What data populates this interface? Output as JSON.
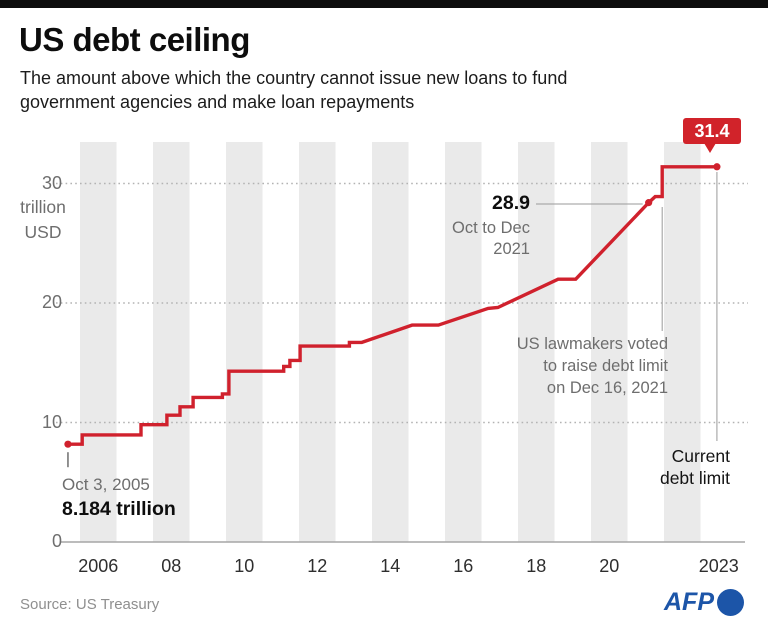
{
  "header": {
    "title": "US debt ceiling",
    "subtitle_lines": [
      "The amount above which the country cannot issue new loans to fund",
      "government agencies and make loan repayments"
    ]
  },
  "footer": {
    "source": "Source: US Treasury",
    "logo_text": "AFP"
  },
  "colors": {
    "accent_red": "#d1232a",
    "line_red": "#d0212d",
    "afp_blue": "#1c55a8",
    "stripe_gray": "#eaeaea",
    "grid_gray": "#b3b3b3",
    "axis_gray": "#a6a6a6",
    "ref_line_gray": "#999999",
    "annotation_gray": "#6e6e6e"
  },
  "chart_data": {
    "type": "line",
    "title": "US debt ceiling",
    "ylabel": "trillion USD",
    "xlabel": "",
    "unit_label_lines": [
      "trillion",
      "USD"
    ],
    "ylim": [
      0,
      33.5
    ],
    "x_range_years": [
      2005.5,
      2023.9
    ],
    "grid": "dotted horizontal gridlines at 10, 20, 30; alternating vertical year bands",
    "legend_position": "none",
    "y_ticks": [
      0,
      10,
      20,
      30
    ],
    "x_ticks": [
      {
        "label": "2006",
        "year": 2006
      },
      {
        "label": "08",
        "year": 2008
      },
      {
        "label": "10",
        "year": 2010
      },
      {
        "label": "12",
        "year": 2012
      },
      {
        "label": "14",
        "year": 2014
      },
      {
        "label": "16",
        "year": 2016
      },
      {
        "label": "18",
        "year": 2018
      },
      {
        "label": "20",
        "year": 2020
      },
      {
        "label": "2023",
        "year": 2023
      }
    ],
    "shaded_band_years": [
      2006,
      2008,
      2010,
      2012,
      2014,
      2016,
      2018,
      2020,
      2022
    ],
    "series": [
      {
        "name": "US debt ceiling, trillion USD",
        "points": [
          [
            2005.67,
            8.184
          ],
          [
            2006.06,
            8.184
          ],
          [
            2006.06,
            8.965
          ],
          [
            2007.67,
            8.965
          ],
          [
            2007.67,
            9.815
          ],
          [
            2008.38,
            9.815
          ],
          [
            2008.38,
            10.615
          ],
          [
            2008.74,
            10.615
          ],
          [
            2008.74,
            11.315
          ],
          [
            2009.1,
            11.315
          ],
          [
            2009.1,
            12.104
          ],
          [
            2009.9,
            12.104
          ],
          [
            2009.9,
            12.394
          ],
          [
            2010.08,
            12.394
          ],
          [
            2010.08,
            14.294
          ],
          [
            2011.58,
            14.294
          ],
          [
            2011.58,
            14.694
          ],
          [
            2011.75,
            14.694
          ],
          [
            2011.75,
            15.194
          ],
          [
            2012.03,
            15.194
          ],
          [
            2012.03,
            16.394
          ],
          [
            2013.38,
            16.394
          ],
          [
            2013.38,
            16.699
          ],
          [
            2013.72,
            16.699
          ],
          [
            2015.1,
            18.15
          ],
          [
            2015.82,
            18.15
          ],
          [
            2017.18,
            19.55
          ],
          [
            2017.45,
            19.62
          ],
          [
            2019.1,
            21.99
          ],
          [
            2019.58,
            21.99
          ],
          [
            2021.58,
            28.4
          ],
          [
            2021.76,
            28.9
          ],
          [
            2021.95,
            28.9
          ],
          [
            2021.95,
            31.4
          ],
          [
            2023.45,
            31.4
          ]
        ]
      }
    ],
    "dot_points": [
      [
        2005.67,
        8.184
      ],
      [
        2021.58,
        28.4
      ],
      [
        2023.45,
        31.4
      ]
    ],
    "annotations": {
      "start": {
        "date": "Oct 3, 2005",
        "value_text": "8.184 trillion",
        "year": 2005.67,
        "value": 8.184
      },
      "oct_dec_2021": {
        "value_text": "28.9",
        "period_line1": "Oct to Dec",
        "period_line2": "2021",
        "value": 28.9
      },
      "vote": {
        "line1": "US lawmakers voted",
        "line2": "to raise debt limit",
        "line3": "on Dec 16, 2021"
      },
      "current_limit": {
        "badge_value": "31.4",
        "caption_line1": "Current",
        "caption_line2": "debt limit",
        "value": 31.4
      }
    }
  }
}
